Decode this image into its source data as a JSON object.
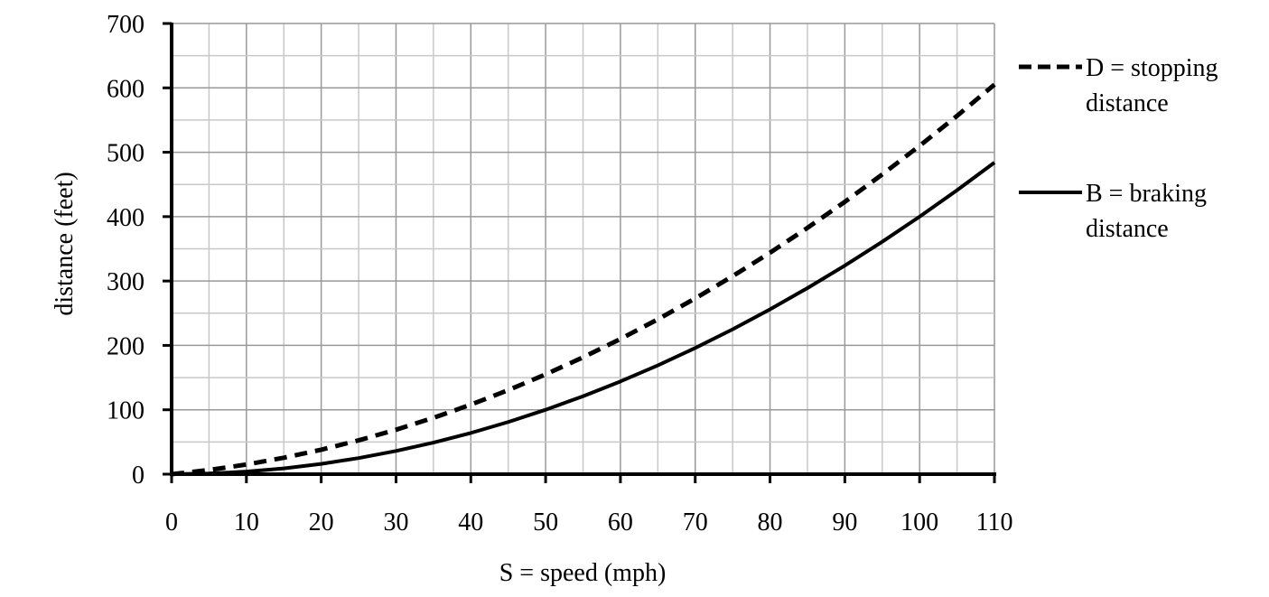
{
  "chart_data": {
    "type": "line",
    "title": "",
    "xlabel": "S = speed (mph)",
    "ylabel": "distance (feet)",
    "xlim": [
      0,
      110
    ],
    "ylim": [
      0,
      700
    ],
    "x_ticks": [
      0,
      10,
      20,
      30,
      40,
      50,
      60,
      70,
      80,
      90,
      100,
      110
    ],
    "y_ticks": [
      0,
      100,
      200,
      300,
      400,
      500,
      600,
      700
    ],
    "x_minor_step": 5,
    "y_minor_step": 50,
    "grid": true,
    "legend_position": "right",
    "x": [
      0,
      5,
      10,
      15,
      20,
      25,
      30,
      35,
      40,
      45,
      50,
      55,
      60,
      65,
      70,
      75,
      80,
      85,
      90,
      95,
      100,
      105,
      110
    ],
    "series": [
      {
        "name": "D = stopping distance",
        "legend_lines": [
          "D = stopping",
          "distance"
        ],
        "style": "dashed",
        "values": [
          0,
          6.5,
          15,
          25.5,
          38,
          52.5,
          69,
          87.5,
          108,
          130.5,
          155,
          181.5,
          210,
          240.5,
          273,
          307.5,
          344,
          382.5,
          423,
          465.5,
          510,
          556.5,
          605
        ]
      },
      {
        "name": "B = braking distance",
        "legend_lines": [
          "B = braking",
          "distance"
        ],
        "style": "solid",
        "values": [
          0,
          1,
          4,
          9,
          16,
          25,
          36,
          49,
          64,
          81,
          100,
          121,
          144,
          169,
          196,
          225,
          256,
          289,
          324,
          361,
          400,
          441,
          484
        ]
      }
    ],
    "colors": {
      "line": "#000000",
      "grid_major": "#999999",
      "grid_minor": "#c8c8c8",
      "axis": "#000000"
    }
  }
}
